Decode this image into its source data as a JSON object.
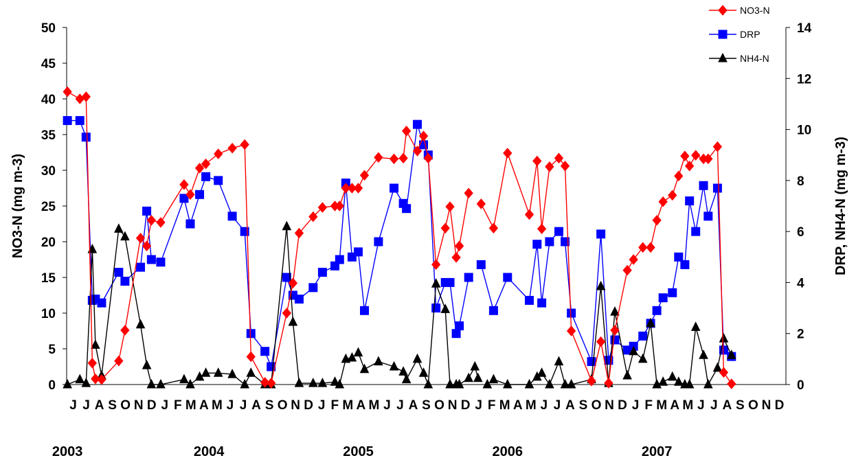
{
  "chart_data": {
    "type": "line",
    "title": "",
    "ylabel_left": "NO3-N (mg m-3)",
    "ylabel_right": "DRP, NH4-N (mg m-3)",
    "ylim_left": [
      0,
      50
    ],
    "ylim_right": [
      0,
      14
    ],
    "yticks_left": [
      "0",
      "5",
      "10",
      "15",
      "20",
      "25",
      "30",
      "35",
      "40",
      "45",
      "50"
    ],
    "yticks_right": [
      "0",
      "2",
      "4",
      "6",
      "8",
      "10",
      "12",
      "14"
    ],
    "x_range": [
      2003.375,
      2008.0
    ],
    "month_labels": [
      "J",
      "J",
      "A",
      "S",
      "O",
      "N",
      "D",
      "J",
      "F",
      "M",
      "A",
      "M",
      "J",
      "J",
      "A",
      "S",
      "O",
      "N",
      "D",
      "J",
      "F",
      "M",
      "A",
      "M",
      "J",
      "J",
      "A",
      "S",
      "O",
      "N",
      "D",
      "J",
      "F",
      "M",
      "A",
      "M",
      "J",
      "J",
      "A",
      "S",
      "O",
      "N",
      "D",
      "J",
      "F",
      "M",
      "A",
      "M",
      "J",
      "J",
      "A",
      "S",
      "O",
      "N",
      "D"
    ],
    "year_labels": [
      {
        "label": "2003",
        "x": 2003.38
      },
      {
        "label": "2004",
        "x": 2004.29
      },
      {
        "label": "2005",
        "x": 2005.25
      },
      {
        "label": "2006",
        "x": 2006.21
      },
      {
        "label": "2007",
        "x": 2007.17
      }
    ],
    "legend_position": "top-right",
    "series": [
      {
        "name": "NO3-N",
        "axis": "left",
        "color": "#ff0000",
        "marker": "diamond",
        "segments": [
          [
            [
              2003.38,
              41.0
            ],
            [
              2003.46,
              40.0
            ],
            [
              2003.5,
              40.3
            ],
            [
              2003.54,
              3.0
            ],
            [
              2003.56,
              0.8
            ],
            [
              2003.6,
              0.7
            ],
            [
              2003.71,
              3.3
            ],
            [
              2003.75,
              7.6
            ],
            [
              2003.85,
              20.5
            ],
            [
              2003.89,
              19.4
            ],
            [
              2003.92,
              23.0
            ],
            [
              2003.98,
              22.7
            ],
            [
              2004.13,
              28.0
            ],
            [
              2004.17,
              26.6
            ],
            [
              2004.23,
              30.3
            ],
            [
              2004.27,
              30.9
            ],
            [
              2004.35,
              32.3
            ],
            [
              2004.44,
              33.1
            ],
            [
              2004.52,
              33.6
            ],
            [
              2004.56,
              3.9
            ],
            [
              2004.65,
              0.3
            ],
            [
              2004.69,
              0.2
            ],
            [
              2004.79,
              10.0
            ],
            [
              2004.83,
              14.2
            ],
            [
              2004.87,
              21.2
            ],
            [
              2004.96,
              23.5
            ],
            [
              2005.02,
              24.8
            ],
            [
              2005.1,
              25.0
            ],
            [
              2005.13,
              25.0
            ],
            [
              2005.17,
              27.5
            ],
            [
              2005.21,
              27.5
            ],
            [
              2005.25,
              27.5
            ],
            [
              2005.29,
              29.3
            ],
            [
              2005.38,
              31.8
            ],
            [
              2005.48,
              31.6
            ],
            [
              2005.54,
              31.7
            ],
            [
              2005.56,
              35.5
            ],
            [
              2005.63,
              32.7
            ],
            [
              2005.67,
              34.8
            ],
            [
              2005.7,
              31.7
            ],
            [
              2005.75,
              16.8
            ],
            [
              2005.81,
              21.9
            ],
            [
              2005.84,
              24.9
            ],
            [
              2005.88,
              17.8
            ],
            [
              2005.9,
              19.4
            ],
            [
              2005.96,
              26.8
            ]
          ],
          [
            [
              2006.04,
              25.3
            ],
            [
              2006.12,
              21.9
            ],
            [
              2006.21,
              32.4
            ],
            [
              2006.35,
              23.8
            ],
            [
              2006.4,
              31.3
            ],
            [
              2006.43,
              21.8
            ],
            [
              2006.48,
              30.5
            ],
            [
              2006.54,
              31.7
            ],
            [
              2006.58,
              30.6
            ],
            [
              2006.62,
              7.5
            ],
            [
              2006.75,
              0.5
            ],
            [
              2006.81,
              6.0
            ],
            [
              2006.86,
              0.2
            ],
            [
              2006.9,
              7.6
            ],
            [
              2006.98,
              16.0
            ],
            [
              2007.02,
              17.5
            ],
            [
              2007.08,
              19.2
            ],
            [
              2007.13,
              19.2
            ],
            [
              2007.17,
              23.0
            ],
            [
              2007.21,
              25.6
            ],
            [
              2007.27,
              26.5
            ],
            [
              2007.31,
              29.2
            ],
            [
              2007.35,
              32.0
            ],
            [
              2007.38,
              30.6
            ],
            [
              2007.42,
              32.1
            ],
            [
              2007.47,
              31.6
            ],
            [
              2007.5,
              31.6
            ],
            [
              2007.56,
              33.3
            ],
            [
              2007.6,
              1.7
            ],
            [
              2007.65,
              0.1
            ]
          ]
        ]
      },
      {
        "name": "DRP",
        "axis": "right",
        "color": "#0000ff",
        "marker": "square",
        "segments": [
          [
            [
              2003.38,
              10.35
            ],
            [
              2003.46,
              10.35
            ],
            [
              2003.5,
              9.7
            ],
            [
              2003.54,
              3.3
            ],
            [
              2003.56,
              3.35
            ],
            [
              2003.6,
              3.2
            ],
            [
              2003.71,
              4.4
            ],
            [
              2003.75,
              4.05
            ],
            [
              2003.85,
              4.6
            ],
            [
              2003.89,
              6.8
            ],
            [
              2003.92,
              4.9
            ],
            [
              2003.98,
              4.8
            ],
            [
              2004.13,
              7.3
            ],
            [
              2004.17,
              6.3
            ],
            [
              2004.23,
              7.45
            ],
            [
              2004.27,
              8.15
            ],
            [
              2004.35,
              8.0
            ],
            [
              2004.44,
              6.6
            ],
            [
              2004.52,
              6.0
            ],
            [
              2004.56,
              2.0
            ],
            [
              2004.65,
              1.3
            ],
            [
              2004.69,
              0.7
            ],
            [
              2004.79,
              4.2
            ],
            [
              2004.83,
              3.5
            ],
            [
              2004.87,
              3.35
            ],
            [
              2004.96,
              3.8
            ],
            [
              2005.02,
              4.4
            ],
            [
              2005.1,
              4.65
            ],
            [
              2005.13,
              4.9
            ],
            [
              2005.17,
              7.9
            ],
            [
              2005.21,
              5.0
            ],
            [
              2005.25,
              5.2
            ],
            [
              2005.29,
              2.9
            ],
            [
              2005.38,
              5.6
            ],
            [
              2005.48,
              7.7
            ],
            [
              2005.54,
              7.1
            ],
            [
              2005.56,
              6.9
            ],
            [
              2005.63,
              10.2
            ],
            [
              2005.67,
              9.4
            ],
            [
              2005.7,
              9.0
            ],
            [
              2005.75,
              3.0
            ],
            [
              2005.81,
              4.0
            ],
            [
              2005.84,
              4.0
            ],
            [
              2005.88,
              2.0
            ],
            [
              2005.9,
              2.3
            ],
            [
              2005.96,
              4.2
            ]
          ],
          [
            [
              2006.04,
              4.7
            ],
            [
              2006.12,
              2.9
            ],
            [
              2006.21,
              4.2
            ],
            [
              2006.35,
              3.3
            ],
            [
              2006.4,
              5.5
            ],
            [
              2006.43,
              3.2
            ],
            [
              2006.48,
              5.6
            ],
            [
              2006.54,
              6.0
            ],
            [
              2006.58,
              5.6
            ],
            [
              2006.62,
              2.8
            ],
            [
              2006.75,
              0.9
            ],
            [
              2006.81,
              5.9
            ],
            [
              2006.86,
              0.95
            ],
            [
              2006.9,
              1.75
            ],
            [
              2006.98,
              1.35
            ],
            [
              2007.02,
              1.5
            ],
            [
              2007.08,
              1.9
            ],
            [
              2007.13,
              2.4
            ],
            [
              2007.17,
              2.9
            ],
            [
              2007.21,
              3.4
            ],
            [
              2007.27,
              3.6
            ],
            [
              2007.31,
              5.0
            ],
            [
              2007.35,
              4.7
            ],
            [
              2007.38,
              7.2
            ],
            [
              2007.42,
              6.0
            ],
            [
              2007.47,
              7.8
            ],
            [
              2007.5,
              6.6
            ],
            [
              2007.56,
              7.7
            ],
            [
              2007.6,
              1.35
            ],
            [
              2007.65,
              1.1
            ]
          ]
        ]
      },
      {
        "name": "NH4-N",
        "axis": "right",
        "color": "#000000",
        "marker": "triangle",
        "segments": [
          [
            [
              2003.38,
              0.0
            ],
            [
              2003.46,
              0.2
            ],
            [
              2003.5,
              0.05
            ],
            [
              2003.54,
              5.3
            ],
            [
              2003.56,
              1.55
            ],
            [
              2003.6,
              0.35
            ],
            [
              2003.71,
              6.1
            ],
            [
              2003.75,
              5.8
            ],
            [
              2003.85,
              2.35
            ],
            [
              2003.89,
              0.75
            ],
            [
              2003.92,
              0.0
            ],
            [
              2003.98,
              0.0
            ],
            [
              2004.13,
              0.2
            ],
            [
              2004.17,
              0.0
            ],
            [
              2004.23,
              0.3
            ],
            [
              2004.27,
              0.45
            ],
            [
              2004.35,
              0.45
            ],
            [
              2004.44,
              0.4
            ],
            [
              2004.52,
              0.0
            ],
            [
              2004.56,
              0.45
            ],
            [
              2004.65,
              0.0
            ],
            [
              2004.69,
              0.0
            ],
            [
              2004.79,
              6.2
            ],
            [
              2004.83,
              2.45
            ],
            [
              2004.87,
              0.05
            ],
            [
              2004.96,
              0.05
            ],
            [
              2005.02,
              0.05
            ],
            [
              2005.1,
              0.1
            ],
            [
              2005.13,
              0.0
            ],
            [
              2005.17,
              1.0
            ],
            [
              2005.21,
              1.05
            ],
            [
              2005.25,
              1.25
            ],
            [
              2005.29,
              0.6
            ],
            [
              2005.38,
              0.9
            ],
            [
              2005.48,
              0.7
            ],
            [
              2005.54,
              0.5
            ],
            [
              2005.56,
              0.2
            ],
            [
              2005.63,
              1.0
            ],
            [
              2005.67,
              0.45
            ],
            [
              2005.7,
              0.0
            ],
            [
              2005.75,
              3.95
            ],
            [
              2005.81,
              2.95
            ],
            [
              2005.84,
              0.0
            ],
            [
              2005.88,
              0.0
            ],
            [
              2005.9,
              0.0
            ],
            [
              2005.96,
              0.25
            ],
            [
              2006.0,
              0.7
            ],
            [
              2006.02,
              0.25
            ]
          ],
          [
            [
              2006.08,
              0.0
            ],
            [
              2006.12,
              0.2
            ],
            [
              2006.21,
              0.0
            ],
            [
              2006.35,
              0.0
            ],
            [
              2006.4,
              0.3
            ],
            [
              2006.43,
              0.45
            ],
            [
              2006.48,
              0.0
            ],
            [
              2006.54,
              0.9
            ],
            [
              2006.58,
              0.0
            ],
            [
              2006.62,
              0.0
            ],
            [
              2006.75,
              0.2
            ],
            [
              2006.81,
              3.85
            ],
            [
              2006.86,
              0.05
            ],
            [
              2006.9,
              2.85
            ],
            [
              2006.98,
              0.35
            ],
            [
              2007.02,
              1.3
            ],
            [
              2007.08,
              1.0
            ],
            [
              2007.13,
              2.4
            ],
            [
              2007.17,
              0.0
            ],
            [
              2007.21,
              0.1
            ],
            [
              2007.27,
              0.3
            ],
            [
              2007.31,
              0.1
            ],
            [
              2007.35,
              0.0
            ],
            [
              2007.38,
              0.0
            ],
            [
              2007.42,
              2.25
            ],
            [
              2007.47,
              1.15
            ],
            [
              2007.5,
              0.0
            ],
            [
              2007.56,
              0.65
            ],
            [
              2007.6,
              1.8
            ],
            [
              2007.65,
              1.15
            ]
          ]
        ]
      }
    ]
  }
}
